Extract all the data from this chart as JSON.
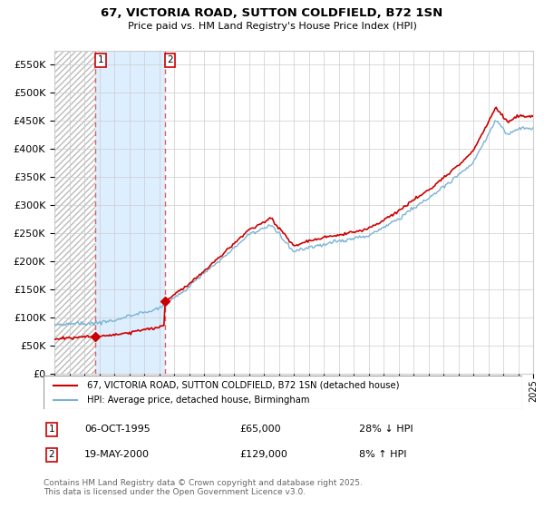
{
  "title1": "67, VICTORIA ROAD, SUTTON COLDFIELD, B72 1SN",
  "title2": "Price paid vs. HM Land Registry's House Price Index (HPI)",
  "legend_line1": "67, VICTORIA ROAD, SUTTON COLDFIELD, B72 1SN (detached house)",
  "legend_line2": "HPI: Average price, detached house, Birmingham",
  "sale1_date": "06-OCT-1995",
  "sale1_price": 65000,
  "sale1_hpi_text": "28% ↓ HPI",
  "sale2_date": "19-MAY-2000",
  "sale2_price": 129000,
  "sale2_hpi_text": "8% ↑ HPI",
  "footer": "Contains HM Land Registry data © Crown copyright and database right 2025.\nThis data is licensed under the Open Government Licence v3.0.",
  "ylim": [
    0,
    575000
  ],
  "yticks": [
    0,
    50000,
    100000,
    150000,
    200000,
    250000,
    300000,
    350000,
    400000,
    450000,
    500000,
    550000
  ],
  "hpi_color": "#7ab3d4",
  "price_color": "#cc0000",
  "sale1_x": 1995.75,
  "sale2_x": 2000.38,
  "vline_color": "#e06060"
}
